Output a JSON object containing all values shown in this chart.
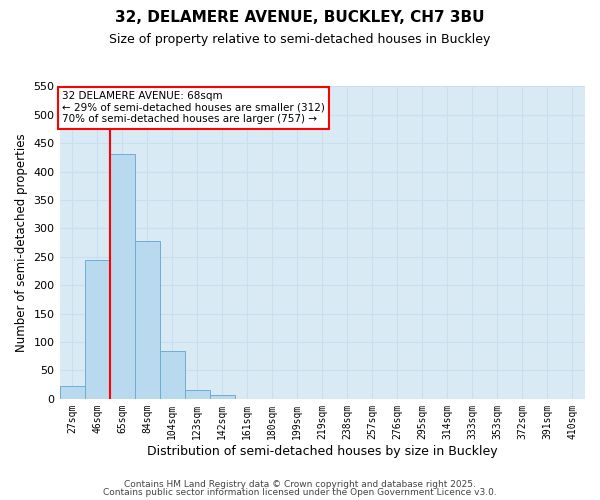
{
  "title1": "32, DELAMERE AVENUE, BUCKLEY, CH7 3BU",
  "title2": "Size of property relative to semi-detached houses in Buckley",
  "xlabel": "Distribution of semi-detached houses by size in Buckley",
  "ylabel": "Number of semi-detached properties",
  "bin_labels": [
    "27sqm",
    "46sqm",
    "65sqm",
    "84sqm",
    "104sqm",
    "123sqm",
    "142sqm",
    "161sqm",
    "180sqm",
    "199sqm",
    "219sqm",
    "238sqm",
    "257sqm",
    "276sqm",
    "295sqm",
    "314sqm",
    "333sqm",
    "353sqm",
    "372sqm",
    "391sqm",
    "410sqm"
  ],
  "bar_heights": [
    23,
    245,
    432,
    278,
    84,
    15,
    7,
    0,
    0,
    0,
    0,
    0,
    0,
    0,
    0,
    0,
    0,
    0,
    0,
    0,
    0
  ],
  "bar_color": "#b8d9ee",
  "bar_edge_color": "#6baed6",
  "grid_color": "#c8dff0",
  "plot_bg_color": "#daeaf5",
  "figure_bg_color": "#ffffff",
  "vline_x": 2.0,
  "vline_color": "red",
  "annotation_title": "32 DELAMERE AVENUE: 68sqm",
  "annotation_line1": "← 29% of semi-detached houses are smaller (312)",
  "annotation_line2": "70% of semi-detached houses are larger (757) →",
  "annotation_box_facecolor": "white",
  "annotation_box_edgecolor": "red",
  "ylim": [
    0,
    550
  ],
  "yticks": [
    0,
    50,
    100,
    150,
    200,
    250,
    300,
    350,
    400,
    450,
    500,
    550
  ],
  "footer1": "Contains HM Land Registry data © Crown copyright and database right 2025.",
  "footer2": "Contains public sector information licensed under the Open Government Licence v3.0."
}
